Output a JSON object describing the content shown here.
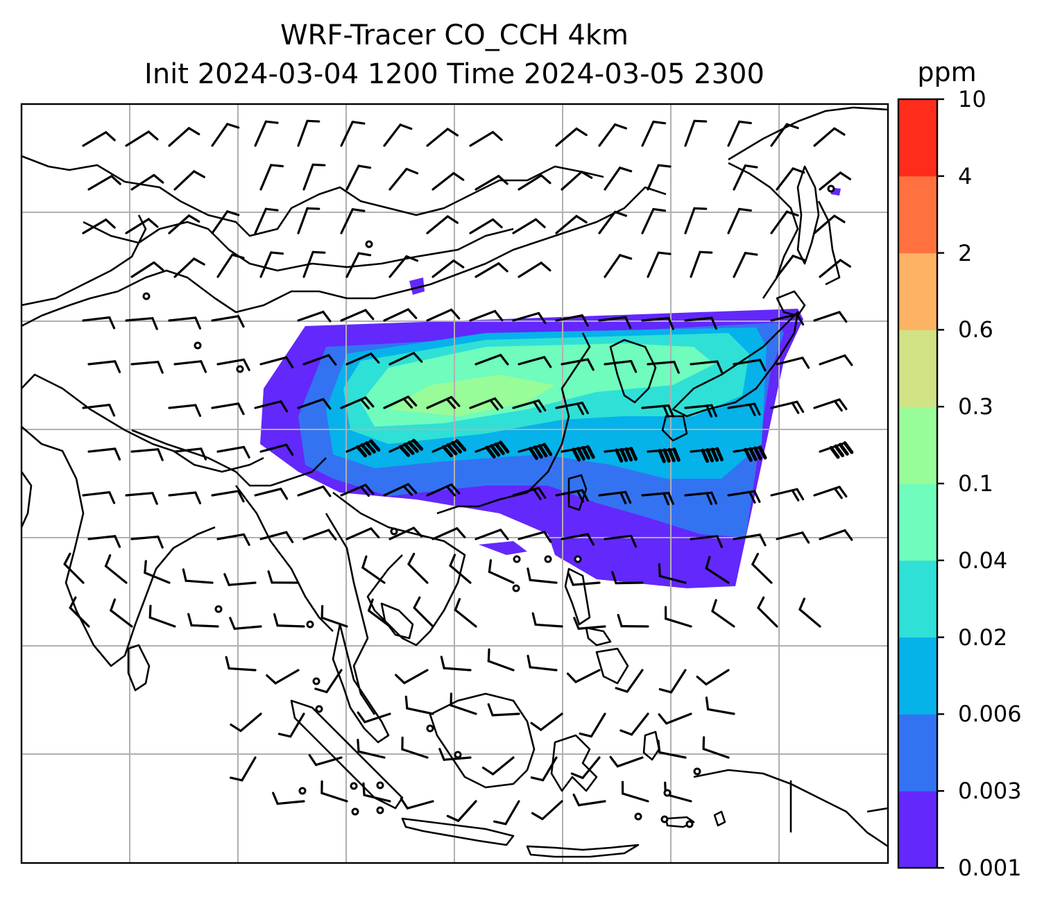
{
  "title": {
    "line1": "WRF-Tracer CO_CCH 4km",
    "line2": "Init 2024-03-04 1200 Time 2024-03-05 2300"
  },
  "colorbar": {
    "unit": "ppm",
    "levels": [
      "0.001",
      "0.003",
      "0.006",
      "0.02",
      "0.04",
      "0.1",
      "0.3",
      "0.6",
      "2",
      "4",
      "10"
    ],
    "colors": [
      "#6328fb",
      "#3373f2",
      "#05b2ea",
      "#2fe0d6",
      "#6ffcbd",
      "#98fc98",
      "#d1e285",
      "#fdb264",
      "#ff7240",
      "#ff2b1b"
    ]
  },
  "map": {
    "gridlines": true,
    "coastline_color": "#000000",
    "gridline_color": "#b0b0b0"
  }
}
